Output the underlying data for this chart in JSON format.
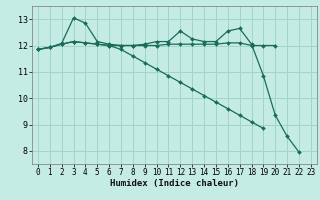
{
  "title": "",
  "xlabel": "Humidex (Indice chaleur)",
  "bg_color": "#c5ece4",
  "grid_color": "#a0d5c8",
  "line_color": "#1a6b58",
  "xlim": [
    -0.5,
    23.5
  ],
  "ylim": [
    7.5,
    13.5
  ],
  "yticks": [
    8,
    9,
    10,
    11,
    12,
    13
  ],
  "xticks": [
    0,
    1,
    2,
    3,
    4,
    5,
    6,
    7,
    8,
    9,
    10,
    11,
    12,
    13,
    14,
    15,
    16,
    17,
    18,
    19,
    20,
    21,
    22,
    23
  ],
  "line1_x": [
    0,
    1,
    2,
    3,
    4,
    5,
    6,
    7,
    8,
    9,
    10,
    11,
    12,
    13,
    14,
    15,
    16,
    17,
    18,
    19,
    20,
    21,
    22
  ],
  "line1_y": [
    11.85,
    11.93,
    12.08,
    13.05,
    12.85,
    12.15,
    12.05,
    12.0,
    12.0,
    12.05,
    12.15,
    12.15,
    12.55,
    12.25,
    12.15,
    12.15,
    12.55,
    12.65,
    12.05,
    10.85,
    9.35,
    8.55,
    7.95
  ],
  "line2_x": [
    0,
    1,
    2,
    3,
    4,
    5,
    6,
    7,
    8,
    9,
    10,
    11,
    12,
    13,
    14,
    15,
    16,
    17,
    18,
    19,
    20
  ],
  "line2_y": [
    11.85,
    11.93,
    12.05,
    12.15,
    12.1,
    12.05,
    12.0,
    12.0,
    12.0,
    12.0,
    12.0,
    12.05,
    12.05,
    12.05,
    12.05,
    12.05,
    12.1,
    12.1,
    12.0,
    12.0,
    12.0
  ],
  "line3_x": [
    0,
    1,
    2,
    3,
    4,
    5,
    6,
    7,
    8,
    9,
    10,
    11,
    12,
    13,
    14,
    15,
    16,
    17,
    18,
    19
  ],
  "line3_y": [
    11.85,
    11.93,
    12.05,
    12.15,
    12.1,
    12.05,
    12.0,
    11.85,
    11.6,
    11.35,
    11.1,
    10.85,
    10.6,
    10.35,
    10.1,
    9.85,
    9.6,
    9.35,
    9.1,
    8.85
  ],
  "markersize": 2.0,
  "linewidth": 0.9,
  "tick_fontsize": 5.5,
  "xlabel_fontsize": 6.5
}
